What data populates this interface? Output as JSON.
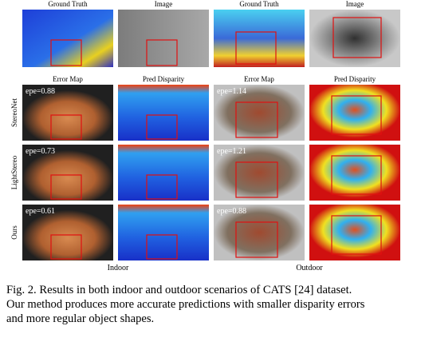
{
  "top_row": {
    "labels": [
      "Ground Truth",
      "Image",
      "Ground Truth",
      "Image"
    ]
  },
  "header_row": {
    "labels": [
      "Error Map",
      "Pred Disparity",
      "Error Map",
      "Pred Disparity"
    ]
  },
  "rows": [
    {
      "label": "StereoNet",
      "indoor_epe": "epe=0.88",
      "outdoor_epe": "epe=1.14"
    },
    {
      "label": "LightStereo",
      "indoor_epe": "epe=0.73",
      "outdoor_epe": "epe=1.21"
    },
    {
      "label": "Ours",
      "indoor_epe": "epe=0.61",
      "outdoor_epe": "epe=0.88"
    }
  ],
  "scene_labels": [
    "Indoor",
    "Outdoor"
  ],
  "caption": {
    "lines": [
      "Fig. 2.   Results in both indoor and outdoor scenarios of CATS [24] dataset.",
      "Our method produces more accurate predictions with smaller disparity errors",
      "and more regular object shapes."
    ]
  }
}
